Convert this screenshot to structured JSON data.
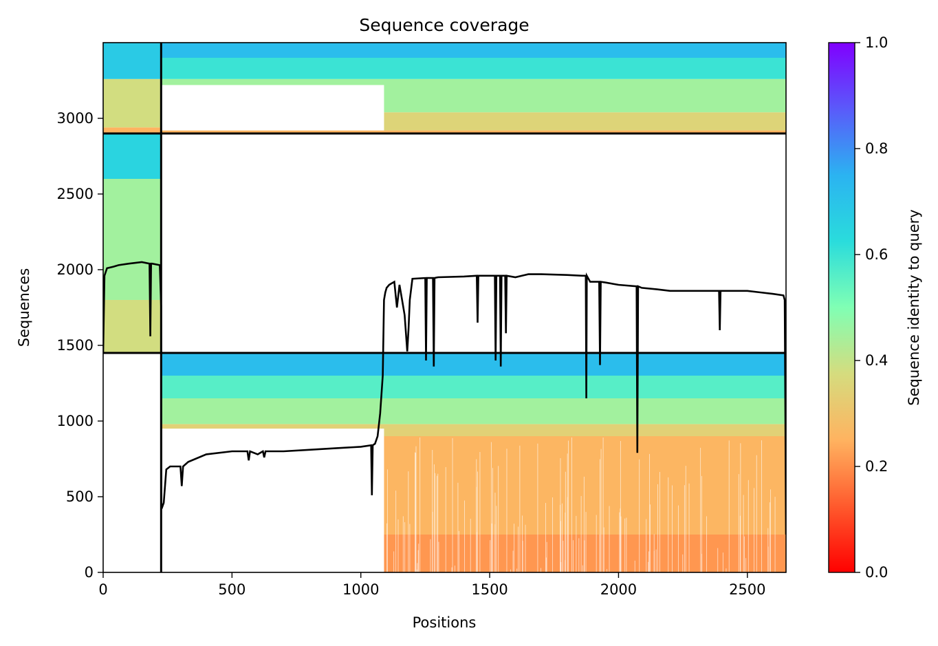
{
  "chart_data": {
    "type": "heatmap",
    "title": "Sequence coverage",
    "xlabel": "Positions",
    "ylabel": "Sequences",
    "xlim": [
      0,
      2650
    ],
    "ylim": [
      0,
      3500
    ],
    "xticks": [
      0,
      500,
      1000,
      1500,
      2000,
      2500
    ],
    "yticks": [
      0,
      500,
      1000,
      1500,
      2000,
      2500,
      3000
    ],
    "colorbar": {
      "label": "Sequence identity to query",
      "range": [
        0.0,
        1.0
      ],
      "ticks": [
        "0.0",
        "0.2",
        "0.4",
        "0.6",
        "0.8",
        "1.0"
      ],
      "colormap": "rainbow"
    },
    "blocks": [
      {
        "x": [
          225,
          2650
        ],
        "y": [
          2900,
          3500
        ],
        "identity_bands": [
          {
            "y": [
              2900,
              2920
            ],
            "identity": 0.25
          },
          {
            "y": [
              2920,
              3040
            ],
            "identity": 0.35
          },
          {
            "y": [
              3040,
              3260
            ],
            "identity": 0.45
          },
          {
            "y": [
              3260,
              3400
            ],
            "identity": 0.6
          },
          {
            "y": [
              3400,
              3500
            ],
            "identity": 0.72
          }
        ],
        "sparse_region": {
          "x": [
            225,
            1090
          ],
          "y": [
            2920,
            3220
          ]
        }
      },
      {
        "x": [
          0,
          225
        ],
        "y": [
          1450,
          3500
        ],
        "identity_bands": [
          {
            "y": [
              1450,
              1800
            ],
            "identity": 0.38
          },
          {
            "y": [
              1800,
              2600
            ],
            "identity": 0.45
          },
          {
            "y": [
              2600,
              2900
            ],
            "identity": 0.65
          },
          {
            "y": [
              2900,
              2940
            ],
            "identity": 0.25
          },
          {
            "y": [
              2940,
              3260
            ],
            "identity": 0.38
          },
          {
            "y": [
              3260,
              3500
            ],
            "identity": 0.68
          }
        ]
      },
      {
        "x": [
          225,
          2650
        ],
        "y": [
          0,
          1450
        ],
        "identity_bands": [
          {
            "y": [
              0,
              250
            ],
            "identity": 0.21
          },
          {
            "y": [
              250,
              900
            ],
            "identity": 0.26
          },
          {
            "y": [
              900,
              980
            ],
            "identity": 0.34
          },
          {
            "y": [
              980,
              1150
            ],
            "identity": 0.45
          },
          {
            "y": [
              1150,
              1300
            ],
            "identity": 0.56
          },
          {
            "y": [
              1300,
              1450
            ],
            "identity": 0.72
          }
        ],
        "gap_region": {
          "x": [
            225,
            1090
          ],
          "y": [
            0,
            950
          ]
        }
      }
    ],
    "separators": {
      "horizontal": [
        1450,
        2900
      ],
      "vertical": [
        225
      ]
    },
    "coverage_line": {
      "x": [
        0,
        5,
        15,
        40,
        60,
        100,
        150,
        180,
        183,
        186,
        190,
        220,
        225,
        226,
        228,
        235,
        245,
        260,
        300,
        305,
        310,
        330,
        400,
        500,
        560,
        565,
        570,
        600,
        620,
        625,
        630,
        700,
        800,
        900,
        1000,
        1040,
        1043,
        1046,
        1055,
        1065,
        1075,
        1085,
        1090,
        1095,
        1100,
        1110,
        1120,
        1130,
        1140,
        1150,
        1160,
        1170,
        1180,
        1185,
        1190,
        1200,
        1250,
        1253,
        1256,
        1280,
        1283,
        1286,
        1300,
        1400,
        1450,
        1453,
        1456,
        1500,
        1520,
        1523,
        1526,
        1540,
        1543,
        1546,
        1560,
        1563,
        1566,
        1600,
        1650,
        1700,
        1800,
        1860,
        1873,
        1875,
        1877,
        1890,
        1925,
        1928,
        1931,
        1950,
        2000,
        2070,
        2073,
        2076,
        2090,
        2150,
        2200,
        2300,
        2350,
        2390,
        2393,
        2396,
        2450,
        2500,
        2550,
        2600,
        2640,
        2645,
        2650
      ],
      "y": [
        1450,
        1960,
        2010,
        2020,
        2030,
        2040,
        2050,
        2040,
        1560,
        2040,
        2040,
        2030,
        1760,
        425,
        425,
        460,
        680,
        700,
        700,
        570,
        700,
        730,
        780,
        800,
        800,
        740,
        800,
        780,
        800,
        760,
        800,
        800,
        810,
        820,
        830,
        840,
        510,
        840,
        850,
        900,
        1050,
        1300,
        1800,
        1850,
        1880,
        1900,
        1910,
        1920,
        1750,
        1900,
        1800,
        1700,
        1460,
        1600,
        1800,
        1940,
        1945,
        1400,
        1945,
        1945,
        1360,
        1945,
        1950,
        1955,
        1960,
        1650,
        1960,
        1960,
        1960,
        1400,
        1960,
        1960,
        1360,
        1960,
        1960,
        1580,
        1960,
        1950,
        1970,
        1970,
        1965,
        1960,
        1960,
        1150,
        1960,
        1920,
        1920,
        1370,
        1920,
        1915,
        1900,
        1890,
        790,
        1890,
        1880,
        1870,
        1860,
        1860,
        1860,
        1860,
        1600,
        1860,
        1860,
        1860,
        1850,
        1840,
        1830,
        1800,
        250
      ]
    }
  }
}
